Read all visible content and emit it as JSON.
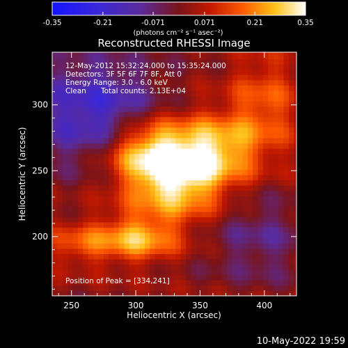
{
  "title": "Reconstructed RHESSI Image",
  "colorbar": {
    "ticks": [
      "-0.35",
      "-0.21",
      "-0.071",
      "0.071",
      "0.21",
      "0.35"
    ],
    "tick_values": [
      -0.35,
      -0.21,
      -0.071,
      0.071,
      0.21,
      0.35
    ],
    "units_label": "(photons cm⁻² s⁻¹ asec⁻²)"
  },
  "info": {
    "time_range": "12-May-2012 15:32:24.000 to 15:35:24.000",
    "detectors": "Detectors: 3F 5F 6F 7F 8F, Att 0",
    "energy_range": "Energy Range: 3.0 - 6.0 keV",
    "algorithm": "Clean",
    "total_counts": "Total counts: 2.13E+04",
    "peak_position": "Position of Peak = [334,241]"
  },
  "footer_timestamp": "10-May-2022 19:59",
  "chart_data": {
    "type": "heatmap",
    "title": "Reconstructed RHESSI Image",
    "xlabel": "Heliocentric X (arcsec)",
    "ylabel": "Heliocentric Y (arcsec)",
    "xlim": [
      235,
      425
    ],
    "ylim": [
      155,
      340
    ],
    "x_ticks": [
      250,
      300,
      350,
      400
    ],
    "y_ticks": [
      200,
      250,
      300
    ],
    "color_range": [
      -0.35,
      0.35
    ],
    "colormap": "blue-purple-red-yellow-white",
    "peak": [
      334,
      241
    ],
    "sources": [
      {
        "x": 330,
        "y": 248,
        "sx": 28,
        "sy": 24,
        "amp": 0.35
      },
      {
        "x": 305,
        "y": 268,
        "sx": 22,
        "sy": 16,
        "amp": 0.18
      },
      {
        "x": 365,
        "y": 268,
        "sx": 22,
        "sy": 18,
        "amp": 0.17
      },
      {
        "x": 300,
        "y": 198,
        "sx": 22,
        "sy": 12,
        "amp": 0.22
      },
      {
        "x": 400,
        "y": 300,
        "sx": 20,
        "sy": 30,
        "amp": 0.14
      },
      {
        "x": 255,
        "y": 195,
        "sx": 18,
        "sy": 12,
        "amp": 0.12
      },
      {
        "x": 268,
        "y": 295,
        "sx": 35,
        "sy": 28,
        "amp": -0.22
      },
      {
        "x": 395,
        "y": 200,
        "sx": 30,
        "sy": 25,
        "amp": -0.1
      }
    ]
  }
}
